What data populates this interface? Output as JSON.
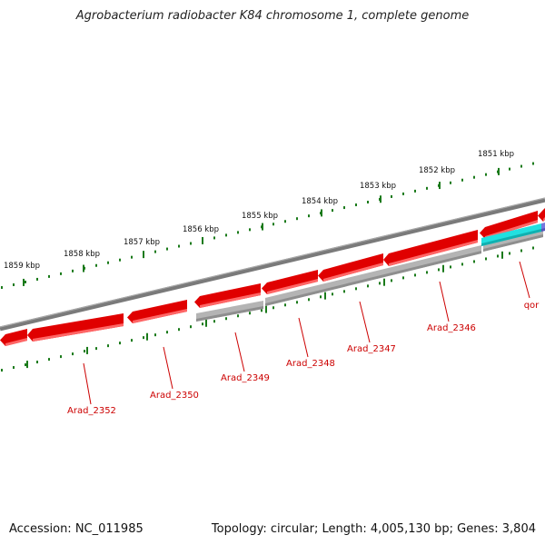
{
  "title": "Agrobacterium radiobacter K84 chromosome 1, complete genome",
  "footer": {
    "accession": "Accession: NC_011985",
    "summary": "Topology: circular; Length: 4,005,130 bp; Genes: 3,804"
  },
  "colors": {
    "backbone": "#7a7a7a",
    "gene_red": "#e00000",
    "gene_red_light": "#ff6666",
    "gene_grey": "#b4b4b4",
    "gene_cyan": "#22e0e0",
    "gene_blue": "#7777dd",
    "tick_green": "#1a7a1a",
    "label_red": "#cc0000"
  },
  "scale_labels": [
    "1851 kbp",
    "1852 kbp",
    "1853 kbp",
    "1854 kbp",
    "1855 kbp",
    "1856 kbp",
    "1857 kbp",
    "1858 kbp",
    "1859 kbp"
  ],
  "gene_labels": [
    "qor",
    "Arad_2346",
    "Arad_2347",
    "Arad_2348",
    "Arad_2349",
    "Arad_2350",
    "Arad_2352"
  ]
}
